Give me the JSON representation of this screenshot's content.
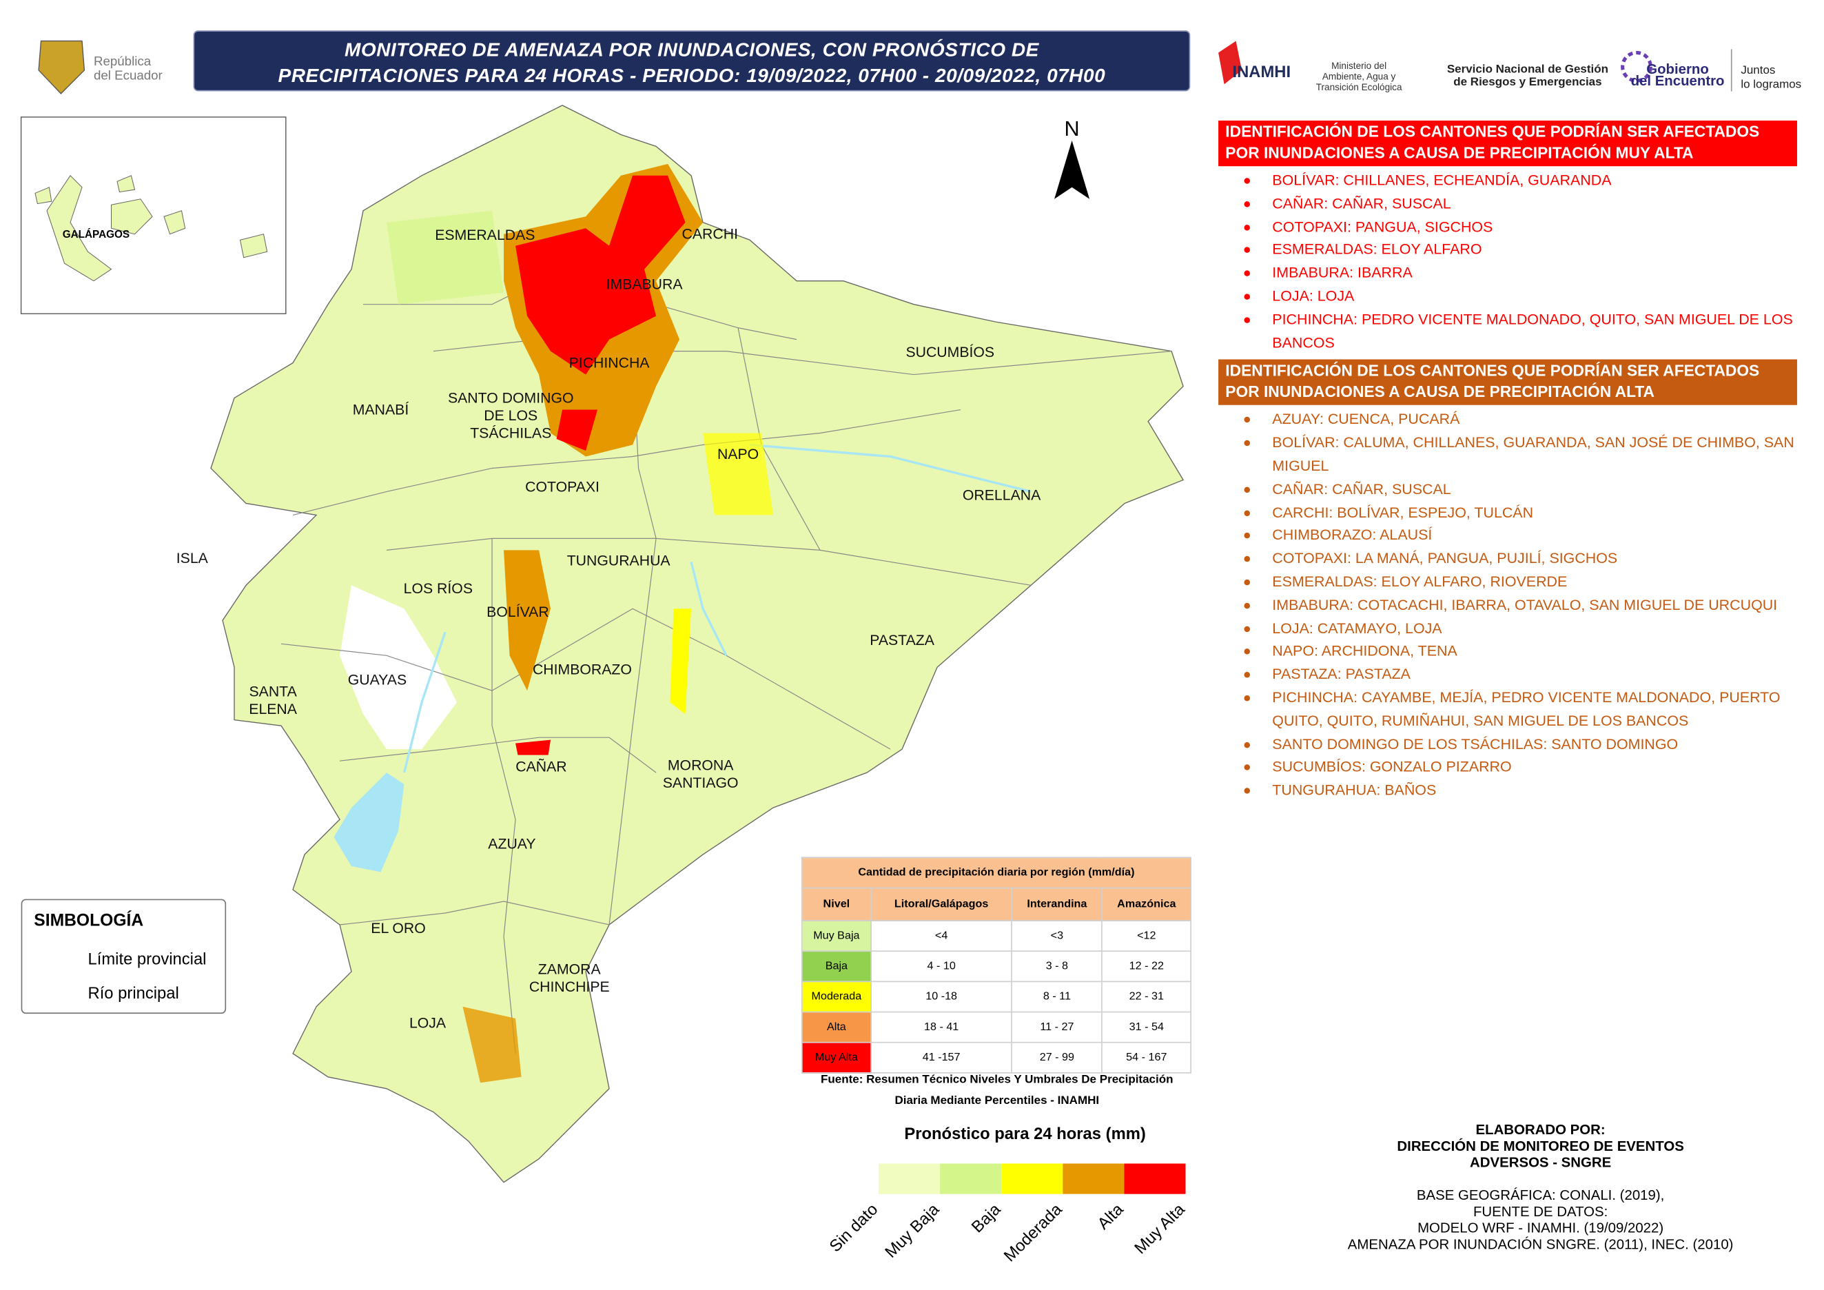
{
  "header": {
    "title_lines": [
      "MONITOREO DE AMENAZA POR INUNDACIONES, CON PRONÓSTICO DE",
      "PRECIPITACIONES  PARA 24  HORAS - PERIODO: 19/09/2022, 07H00 - 20/09/2022, 07H00"
    ],
    "republic": [
      "República",
      "del Ecuador"
    ],
    "inamhi": "INAMHI",
    "ministry": [
      "Ministerio del",
      "Ambiente, Agua y",
      "Transición Ecológica"
    ],
    "sngre": [
      "Servicio Nacional de Gestión",
      "de Riesgos y Emergencias"
    ],
    "gobierno": [
      "Gobierno",
      "del Encuentro"
    ],
    "juntos": [
      "Juntos",
      "lo logramos"
    ]
  },
  "map": {
    "north": "N",
    "inset_label": "GALÁPAGOS",
    "provinces": [
      {
        "lines": [
          "ESMERALDAS"
        ]
      },
      {
        "lines": [
          "CARCHI"
        ]
      },
      {
        "lines": [
          "IMBABURA"
        ]
      },
      {
        "lines": [
          "SUCUMBÍOS"
        ]
      },
      {
        "lines": [
          "PICHINCHA"
        ]
      },
      {
        "lines": [
          "MANABÍ"
        ]
      },
      {
        "lines": [
          "SANTO DOMINGO",
          "DE LOS",
          "TSÁCHILAS"
        ]
      },
      {
        "lines": [
          "NAPO"
        ]
      },
      {
        "lines": [
          "ORELLANA"
        ]
      },
      {
        "lines": [
          "COTOPAXI"
        ]
      },
      {
        "lines": [
          "ISLA"
        ]
      },
      {
        "lines": [
          "TUNGURAHUA"
        ]
      },
      {
        "lines": [
          "LOS RÍOS"
        ]
      },
      {
        "lines": [
          "BOLÍVAR"
        ]
      },
      {
        "lines": [
          "PASTAZA"
        ]
      },
      {
        "lines": [
          "GUAYAS"
        ]
      },
      {
        "lines": [
          "SANTA",
          "ELENA"
        ]
      },
      {
        "lines": [
          "CHIMBORAZO"
        ]
      },
      {
        "lines": [
          "CAÑAR"
        ]
      },
      {
        "lines": [
          "MORONA",
          "SANTIAGO"
        ]
      },
      {
        "lines": [
          "AZUAY"
        ]
      },
      {
        "lines": [
          "EL ORO"
        ]
      },
      {
        "lines": [
          "ZAMORA",
          "CHINCHIPE"
        ]
      },
      {
        "lines": [
          "LOJA"
        ]
      }
    ]
  },
  "legend": {
    "title": "SIMBOLOGÍA",
    "items": [
      "Límite provincial",
      "Río principal"
    ]
  },
  "threshold_table": {
    "title": "Cantidad de precipitación diaria por región (mm/día)",
    "columns": [
      "Nivel",
      "Litoral/Galápagos",
      "Interandina",
      "Amazónica"
    ],
    "rows": [
      [
        "Muy Baja",
        "<4",
        "<3",
        "<12"
      ],
      [
        "Baja",
        "4 - 10",
        "3 - 8",
        "12 - 22"
      ],
      [
        "Moderada",
        "10 -18",
        "8 - 11",
        "22 - 31"
      ],
      [
        "Alta",
        "18 - 41",
        "11 - 27",
        "31 - 54"
      ],
      [
        "Muy Alta",
        "41 -157",
        "27 - 99",
        "54 - 167"
      ]
    ],
    "colors": [
      "#d7f5a0",
      "#92d050",
      "#ffff00",
      "#f79646",
      "#ff0000"
    ],
    "source": "Fuente: Resumen Técnico Niveles Y Umbrales De Precipitación Diaria Mediante Percentiles - INAMHI"
  },
  "forecast_scale": {
    "title": "Pronóstico para 24 horas (mm)",
    "labels": [
      "Sin dato",
      "Muy Baja",
      "Baja",
      "Moderada",
      "Alta",
      "Muy Alta"
    ],
    "colors": [
      "#f0fcc0",
      "#d4f58a",
      "#ffff00",
      "#e69800",
      "#ff0000"
    ]
  },
  "lists": [
    {
      "heading": "IDENTIFICACIÓN DE LOS CANTONES QUE PODRÍAN SER AFECTADOS POR INUNDACIONES A CAUSA DE  PRECIPITACIÓN MUY ALTA",
      "color": "#ff0000",
      "items": [
        "BOLÍVAR: CHILLANES, ECHEANDÍA, GUARANDA",
        "CAÑAR: CAÑAR, SUSCAL",
        "COTOPAXI: PANGUA, SIGCHOS",
        "ESMERALDAS: ELOY ALFARO",
        "IMBABURA: IBARRA",
        "LOJA: LOJA",
        "PICHINCHA: PEDRO VICENTE MALDONADO, QUITO, SAN MIGUEL DE LOS BANCOS"
      ]
    },
    {
      "heading": "IDENTIFICACIÓN DE LOS CANTONES QUE PODRÍAN SER AFECTADOS POR INUNDACIONES A CAUSA DE  PRECIPITACIÓN  ALTA",
      "color": "#c55a11",
      "items": [
        "AZUAY: CUENCA, PUCARÁ",
        "BOLÍVAR: CALUMA, CHILLANES, GUARANDA, SAN JOSÉ DE CHIMBO, SAN MIGUEL",
        "CAÑAR: CAÑAR, SUSCAL",
        "CARCHI: BOLÍVAR, ESPEJO, TULCÁN",
        "CHIMBORAZO: ALAUSÍ",
        "COTOPAXI: LA MANÁ, PANGUA, PUJILÍ, SIGCHOS",
        "ESMERALDAS: ELOY ALFARO, RIOVERDE",
        "IMBABURA: COTACACHI, IBARRA, OTAVALO, SAN MIGUEL DE URCUQUI",
        "LOJA: CATAMAYO, LOJA",
        "NAPO: ARCHIDONA, TENA",
        "PASTAZA: PASTAZA",
        "PICHINCHA: CAYAMBE, MEJÍA, PEDRO VICENTE MALDONADO, PUERTO QUITO, QUITO, RUMIÑAHUI, SAN MIGUEL DE LOS BANCOS",
        "SANTO DOMINGO DE LOS TSÁCHILAS: SANTO DOMINGO",
        "SUCUMBÍOS: GONZALO PIZARRO",
        "TUNGURAHUA: BAÑOS"
      ]
    }
  ],
  "credits": {
    "bold_lines": [
      "ELABORADO POR:",
      "DIRECCIÓN DE MONITOREO DE EVENTOS",
      "ADVERSOS - SNGRE"
    ],
    "lines": [
      "BASE GEOGRÁFICA: CONALI. (2019),",
      "FUENTE DE DATOS:",
      "MODELO WRF - INAMHI. (19/09/2022)",
      "AMENAZA POR INUNDACIÓN SNGRE. (2011), INEC. (2010)"
    ]
  }
}
